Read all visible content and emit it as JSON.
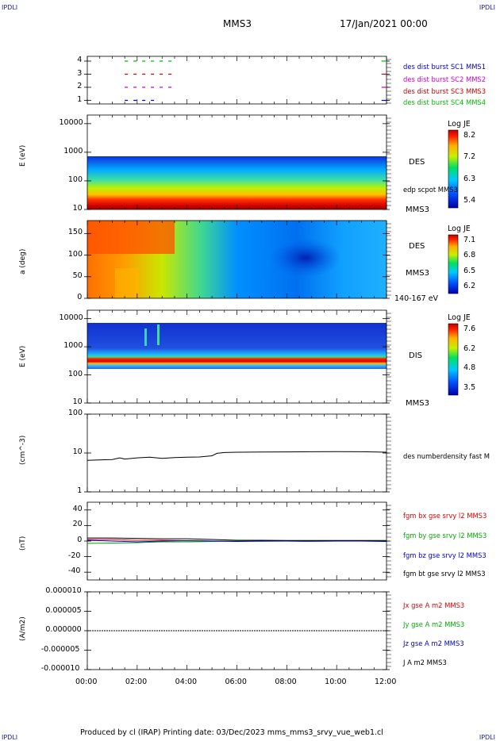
{
  "header": {
    "corner_left": "IPDLI",
    "corner_right": "IPDLI",
    "spacecraft": "MMS3",
    "date": "17/Jan/2021 00:00"
  },
  "footer": {
    "text": "Produced by cl (IRAP)   Printing date: 03/Dec/2023   mms_mms3_srvy_vue_web1.cl",
    "corner_left": "IPDLI",
    "corner_right": "IPDLI"
  },
  "colors": {
    "sc1": "#0000cc",
    "sc2": "#cc00cc",
    "sc3": "#cc0000",
    "sc4": "#00bb00",
    "bx": "#dd0000",
    "by": "#00aa00",
    "bz": "#0000cc",
    "bt": "#000000"
  },
  "chart_data": [
    {
      "type": "line",
      "panel": "burst-availability",
      "yticks": [
        "4",
        "3",
        "2",
        "1"
      ],
      "series": [
        {
          "name": "des dist burst SC1 MMS1",
          "level": 1,
          "intervals": [
            [
              1.5,
              2.9
            ],
            [
              11.8,
              12.0
            ]
          ]
        },
        {
          "name": "des dist burst SC2 MMS2",
          "level": 2,
          "intervals": [
            [
              1.5,
              3.4
            ],
            [
              11.8,
              12.0
            ]
          ]
        },
        {
          "name": "des dist burst SC3 MMS3",
          "level": 3,
          "intervals": [
            [
              1.5,
              3.4
            ],
            [
              11.8,
              12.0
            ]
          ]
        },
        {
          "name": "des dist burst SC4 MMS4",
          "level": 4,
          "intervals": [
            [
              1.5,
              3.4
            ],
            [
              11.8,
              12.0
            ]
          ]
        }
      ]
    },
    {
      "type": "heatmap",
      "panel": "des-energy",
      "ylabel": "E (eV)",
      "yscale": "log",
      "ylim": [
        10,
        20000
      ],
      "yticks": [
        "10000",
        "1000",
        "100",
        "10"
      ],
      "colorbar": {
        "label": "Log JE",
        "ticks": [
          "8.2",
          "7.2",
          "6.3",
          "5.4"
        ]
      },
      "labels": [
        "DES",
        "edp scpot MMS3",
        "MMS3"
      ]
    },
    {
      "type": "heatmap",
      "panel": "des-pitch-angle",
      "ylabel": "a (deg)",
      "ylim": [
        0,
        180
      ],
      "yticks": [
        "150",
        "100",
        "50",
        "0"
      ],
      "colorbar": {
        "label": "Log JE",
        "ticks": [
          "7.1",
          "6.8",
          "6.5",
          "6.2"
        ]
      },
      "labels": [
        "DES",
        "MMS3",
        "140-167 eV"
      ]
    },
    {
      "type": "heatmap",
      "panel": "dis-energy",
      "ylabel": "E (eV)",
      "yscale": "log",
      "ylim": [
        10,
        20000
      ],
      "yticks": [
        "10000",
        "1000",
        "100",
        "10"
      ],
      "colorbar": {
        "label": "Log JE",
        "ticks": [
          "7.6",
          "6.2",
          "4.8",
          "3.5"
        ]
      },
      "labels": [
        "DIS",
        "MMS3"
      ]
    },
    {
      "type": "line",
      "panel": "density",
      "ylabel": "(cm^-3)",
      "yscale": "log",
      "ylim": [
        1,
        100
      ],
      "yticks": [
        "100",
        "10",
        "1"
      ],
      "series": [
        {
          "name": "des numberdensity fast M",
          "x": [
            0,
            1,
            1.3,
            1.5,
            2,
            2.5,
            3,
            3.5,
            4,
            4.5,
            5,
            5.2,
            5.5,
            6,
            7,
            8,
            9,
            10,
            11,
            12
          ],
          "y": [
            6.5,
            6.8,
            7.5,
            7.0,
            7.5,
            7.8,
            7.3,
            7.6,
            7.8,
            7.9,
            8.5,
            9.8,
            10.3,
            10.5,
            10.6,
            10.7,
            10.8,
            10.9,
            10.8,
            10.5
          ]
        }
      ]
    },
    {
      "type": "line",
      "panel": "magnetic-field",
      "ylabel": "(nT)",
      "ylim": [
        -50,
        50
      ],
      "yticks": [
        "40",
        "20",
        "0",
        "-20",
        "-40"
      ],
      "series": [
        {
          "name": "fgm bx gse srvy l2 MMS3",
          "x": [
            0,
            1,
            2,
            3,
            4,
            5,
            6,
            7,
            8,
            9,
            10,
            11,
            12
          ],
          "y": [
            2,
            2,
            1,
            1,
            0.5,
            0,
            0,
            0.2,
            0,
            0,
            0.3,
            0,
            0
          ]
        },
        {
          "name": "fgm by gse srvy l2 MMS3",
          "x": [
            0,
            1,
            2,
            3,
            4,
            5,
            6,
            7,
            8,
            9,
            10,
            11,
            12
          ],
          "y": [
            -3,
            -2.5,
            -2,
            -1,
            -1,
            -0.5,
            0,
            -0.2,
            0,
            -0.1,
            0,
            0,
            0
          ]
        },
        {
          "name": "fgm bz gse srvy l2 MMS3",
          "x": [
            0,
            1,
            2,
            3,
            4,
            5,
            6,
            7,
            8,
            9,
            10,
            11,
            12
          ],
          "y": [
            1,
            0,
            -1,
            0,
            0.5,
            0,
            -0.5,
            0,
            0,
            -0.3,
            0,
            0,
            -0.5
          ]
        },
        {
          "name": "fgm bt gse srvy l2 MMS3",
          "x": [
            0,
            1,
            2,
            3,
            4,
            5,
            6,
            7,
            8,
            9,
            10,
            11,
            12
          ],
          "y": [
            4,
            4,
            3.5,
            3,
            3,
            2,
            1,
            1,
            0.8,
            0.8,
            0.8,
            0.8,
            0.8
          ]
        }
      ]
    },
    {
      "type": "line",
      "panel": "current-density",
      "ylabel": "(A/m2)",
      "ylim": [
        -1e-05,
        1e-05
      ],
      "yticks": [
        "0.000010",
        "0.000005",
        "0.000000",
        "-0.000005",
        "-0.000010"
      ],
      "series": [
        {
          "name": "Jx gse A m2 MMS3",
          "x": [
            0,
            12
          ],
          "y": [
            0,
            0
          ]
        },
        {
          "name": "Jy gse A m2 MMS3",
          "x": [
            0,
            12
          ],
          "y": [
            0,
            0
          ]
        },
        {
          "name": "Jz gse A m2 MMS3",
          "x": [
            0,
            12
          ],
          "y": [
            0,
            0
          ]
        },
        {
          "name": "J A m2 MMS3",
          "x": [
            0,
            12
          ],
          "y": [
            0,
            0
          ]
        }
      ]
    },
    {
      "type": "axis",
      "panel": "time-axis",
      "xlim": [
        0,
        12
      ],
      "xticks": [
        "00:00",
        "02:00",
        "04:00",
        "06:00",
        "08:00",
        "10:00",
        "12:00"
      ]
    }
  ]
}
